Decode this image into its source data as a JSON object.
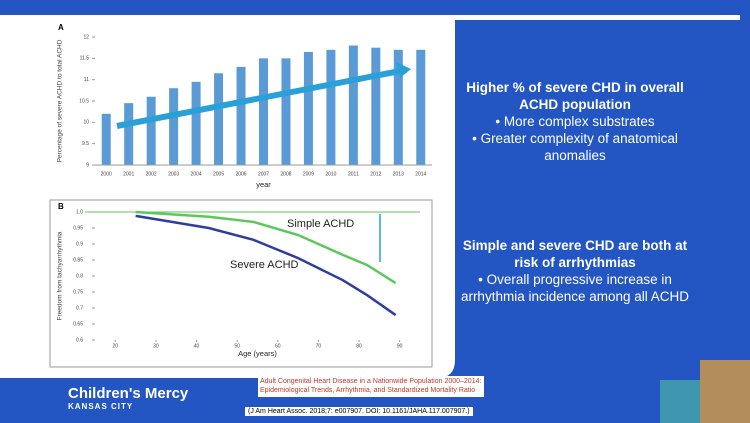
{
  "chart_data": [
    {
      "type": "bar",
      "panel": "A",
      "y_label": "Percentage of severe ACHD to total ACHD",
      "x_label": "year",
      "categories": [
        "2000",
        "2001",
        "2002",
        "2003",
        "2004",
        "2005",
        "2006",
        "2007",
        "2008",
        "2009",
        "2010",
        "2011",
        "2012",
        "2013",
        "2014"
      ],
      "values": [
        10.2,
        10.45,
        10.6,
        10.8,
        10.95,
        11.15,
        11.3,
        11.5,
        11.5,
        11.65,
        11.7,
        11.8,
        11.75,
        11.7,
        11.7
      ],
      "color": "#5b9bd5",
      "ylim": [
        9,
        12
      ],
      "yticks": [
        9,
        9.5,
        10,
        10.5,
        11,
        11.5,
        12
      ]
    },
    {
      "type": "line",
      "panel": "B",
      "y_label": "Freedom from tachyarrhythmia",
      "x_label": "Age (years)",
      "annotations": [
        "Simple ACHD",
        "Severe ACHD"
      ],
      "x": [
        25,
        43,
        54,
        65,
        76,
        82,
        89
      ],
      "series": [
        {
          "name": "Simple ACHD",
          "color": "#5cc85a",
          "values": [
            1.0,
            0.985,
            0.969,
            0.928,
            0.866,
            0.834,
            0.778
          ]
        },
        {
          "name": "Severe ACHD",
          "color": "#2e3d9e",
          "values": [
            0.988,
            0.95,
            0.913,
            0.856,
            0.787,
            0.74,
            0.678
          ]
        }
      ],
      "xlim": [
        15,
        95
      ],
      "xticks": [
        20,
        30,
        40,
        50,
        60,
        70,
        80,
        90
      ],
      "ylim": [
        0.6,
        1.0
      ],
      "yticks": [
        0.6,
        0.65,
        0.7,
        0.75,
        0.8,
        0.85,
        0.9,
        0.95,
        {
          "value": 1.0,
          "label": "1.0"
        }
      ]
    }
  ],
  "right_text": {
    "heading1": "Higher % of severe CHD in overall ACHD population",
    "bullets1": [
      "More complex substrates",
      "Greater complexity of anatomical anomalies"
    ],
    "heading2": "Simple and severe CHD are both at risk of arrhythmias",
    "bullets2": [
      "Overall progressive increase in arrhythmia incidence among all ACHD"
    ]
  },
  "logo": {
    "name": "Children's Mercy",
    "city": "KANSAS CITY"
  },
  "citation": {
    "title": "Adult Congenital Heart Disease in a Nationwide Population 2000–2014: Epidemiological Trends, Arrhythmia, and Standardized Mortality Ratio",
    "reference": "(J Am Heart Assoc. 2018;7: e007907. DOI: 10.1161/JAHA.117.007907.)"
  }
}
